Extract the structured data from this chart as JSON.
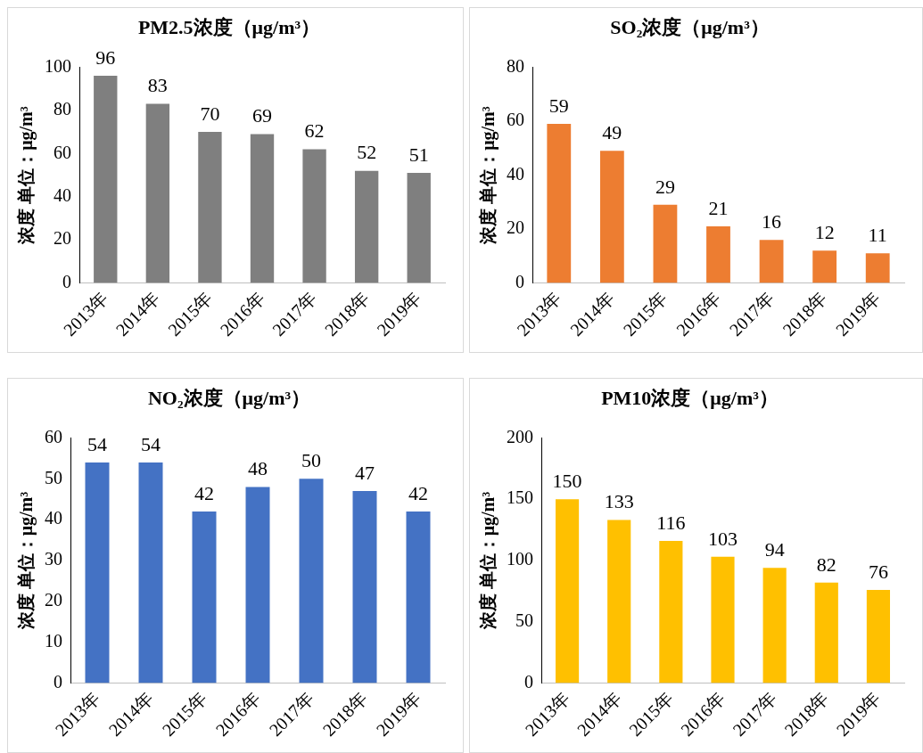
{
  "chart_data": [
    {
      "type": "bar",
      "title": "PM2.5浓度（μg/m³）",
      "ylabel": "浓度 单位：μg/m³",
      "categories": [
        "2013年",
        "2014年",
        "2015年",
        "2016年",
        "2017年",
        "2018年",
        "2019年"
      ],
      "values": [
        96,
        83,
        70,
        69,
        62,
        52,
        51
      ],
      "color": "#7f7f7f",
      "ylim": [
        0,
        100
      ],
      "yticks": [
        0,
        20,
        40,
        60,
        80,
        100
      ],
      "grid": false,
      "data_labels": true
    },
    {
      "type": "bar",
      "title": "SO₂浓度（μg/m³）",
      "ylabel": "浓度 单位：μg/m³",
      "categories": [
        "2013年",
        "2014年",
        "2015年",
        "2016年",
        "2017年",
        "2018年",
        "2019年"
      ],
      "values": [
        59,
        49,
        29,
        21,
        16,
        12,
        11
      ],
      "color": "#ed7d31",
      "ylim": [
        0,
        80
      ],
      "yticks": [
        0,
        20,
        40,
        60,
        80
      ],
      "grid": false,
      "data_labels": true
    },
    {
      "type": "bar",
      "title": "NO₂浓度（μg/m³）",
      "ylabel": "浓度 单位：μg/m³",
      "categories": [
        "2013年",
        "2014年",
        "2015年",
        "2016年",
        "2017年",
        "2018年",
        "2019年"
      ],
      "values": [
        54,
        54,
        42,
        48,
        50,
        47,
        42
      ],
      "color": "#4472c4",
      "ylim": [
        0,
        60
      ],
      "yticks": [
        0,
        10,
        20,
        30,
        40,
        50,
        60
      ],
      "grid": false,
      "data_labels": true
    },
    {
      "type": "bar",
      "title": "PM10浓度（μg/m³）",
      "ylabel": "浓度 单位：μg/m³",
      "categories": [
        "2013年",
        "2014年",
        "2015年",
        "2016年",
        "2017年",
        "2018年",
        "2019年"
      ],
      "values": [
        150,
        133,
        116,
        103,
        94,
        82,
        76
      ],
      "color": "#ffc000",
      "ylim": [
        0,
        200
      ],
      "yticks": [
        0,
        50,
        100,
        150,
        200
      ],
      "grid": false,
      "data_labels": true
    }
  ]
}
